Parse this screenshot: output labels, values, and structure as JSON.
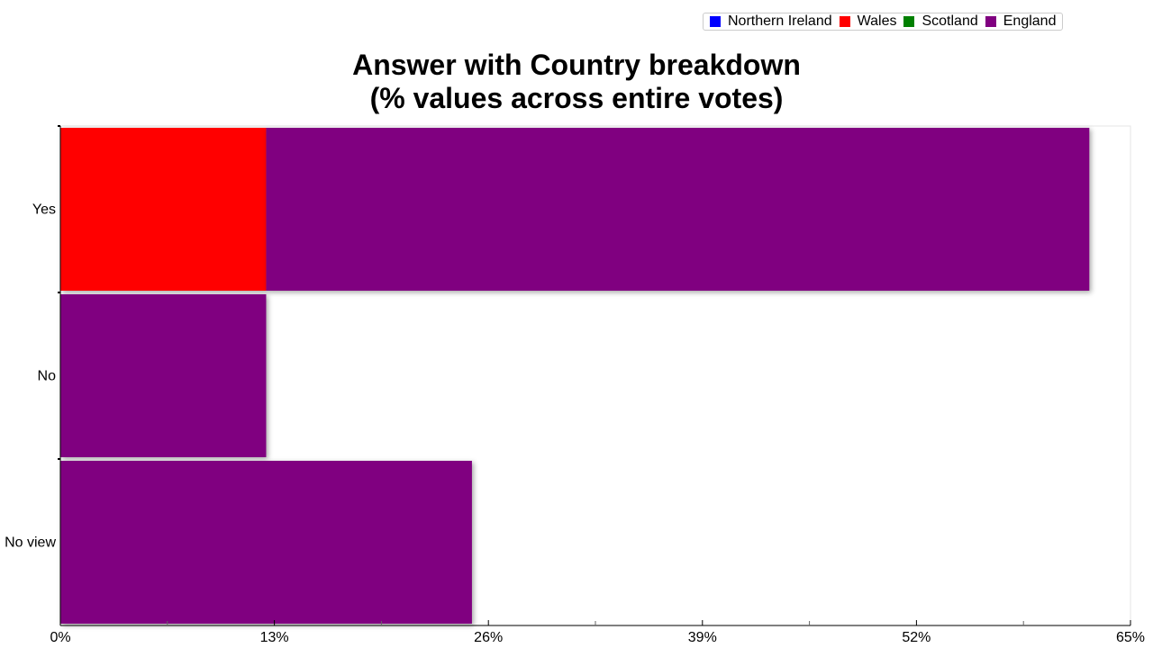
{
  "chart_data": {
    "type": "bar",
    "orientation": "horizontal",
    "stacked": true,
    "title": "Answer with Country breakdown",
    "subtitle": "(% values across entire votes)",
    "categories": [
      "Yes",
      "No",
      "No view"
    ],
    "series": [
      {
        "name": "Northern Ireland",
        "color": "#0000ff",
        "values": [
          0,
          0,
          0
        ]
      },
      {
        "name": "Wales",
        "color": "#ff0000",
        "values": [
          12.5,
          0,
          0
        ]
      },
      {
        "name": "Scotland",
        "color": "#008000",
        "values": [
          0,
          0,
          0
        ]
      },
      {
        "name": "England",
        "color": "#800080",
        "values": [
          50,
          12.5,
          25
        ]
      }
    ],
    "xlim": [
      0,
      65
    ],
    "xticks": [
      "0%",
      "13%",
      "26%",
      "39%",
      "52%",
      "65%"
    ],
    "xtick_values": [
      0,
      13,
      26,
      39,
      52,
      65
    ],
    "legend_position": "top-right",
    "grid": false
  }
}
